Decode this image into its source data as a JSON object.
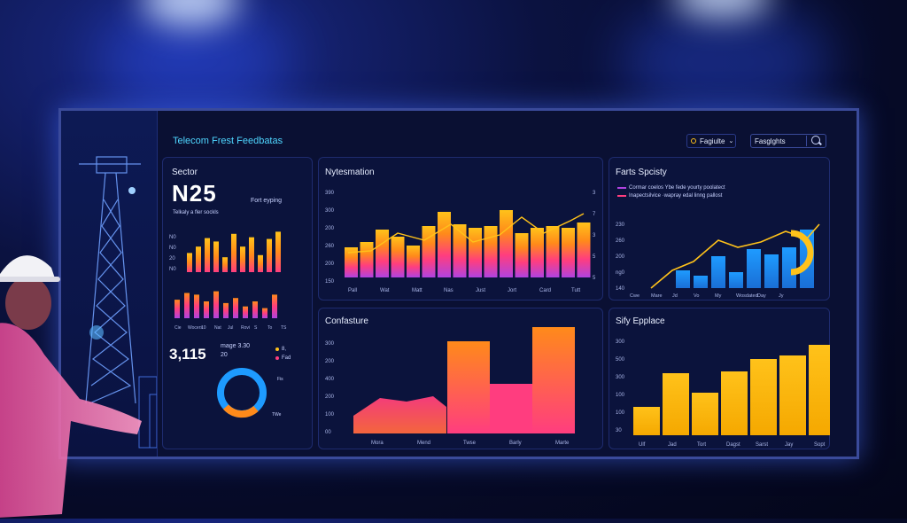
{
  "dashboard": {
    "title": "Telecom Frest Feedbatas",
    "filter_label": "Fagiulte",
    "search_placeholder": "Fasglghts"
  },
  "sector": {
    "title": "Sector",
    "kpi": "N25",
    "side_label": "Fort eyping",
    "sub_label": "Telkaly a fler sockls",
    "ylabels": [
      "N0",
      "N0",
      "20",
      "N0"
    ],
    "bars1": [
      0.45,
      0.6,
      0.8,
      0.72,
      0.35,
      0.9,
      0.6,
      0.82,
      0.4,
      0.78,
      0.95
    ],
    "bars2": [
      0.55,
      0.75,
      0.7,
      0.5,
      0.8,
      0.45,
      0.6,
      0.35,
      0.5,
      0.3,
      0.7
    ],
    "xlabels": [
      "Cie",
      "Wocers",
      "10",
      "Nat",
      "Jul",
      "Rovi",
      "S",
      "To",
      "TS"
    ],
    "kpi2": "3,115",
    "kpi2_sub1": "mage 3.30",
    "kpi2_sub2": "20",
    "legend": [
      {
        "label": "8,"
      },
      {
        "label": "Fad"
      }
    ],
    "donut_label1": "Fis",
    "donut_label2": "TWe"
  },
  "panel_top_mid": {
    "title": "Nytesmation",
    "ylabels": [
      "390",
      "300",
      "200",
      "260",
      "200",
      "150"
    ],
    "yright": [
      "3",
      "7",
      "3",
      "5",
      "5"
    ],
    "xlabels": [
      "Pall",
      "Wat",
      "Matt",
      "Nas",
      "Just",
      "Jort",
      "Card",
      "Tutt"
    ]
  },
  "panel_top_right": {
    "title": "Farts Spcisty",
    "legend1": "Cormar coelos   Ybe fede yourty poolatect",
    "legend2": "Inapectsilvice  ·wapray edal linng pallost",
    "ylabels": [
      "230",
      "260",
      "200",
      "ng0",
      "140"
    ],
    "xlabels": [
      "Cwe",
      "Mare",
      "Jd",
      "Vo",
      "My",
      "Wosdated",
      "Day",
      "Jy"
    ]
  },
  "panel_bot_mid": {
    "title": "Confasture",
    "ylabels": [
      "300",
      "200",
      "400",
      "200",
      "100",
      "00"
    ],
    "xlabels": [
      "Mora",
      "Mend",
      "Twse",
      "Barly",
      "Marte"
    ]
  },
  "panel_bot_right": {
    "title": "Sify Epplace",
    "ylabels": [
      "300",
      "500",
      "300",
      "100",
      "100",
      "30"
    ],
    "xlabels": [
      "Ulf",
      "Jad",
      "Tort",
      "Dagst",
      "Sarst",
      "Jay",
      "Sopt"
    ]
  },
  "colors": {
    "cyan": "#4fd6ff",
    "yellow": "#ffc21a",
    "orange": "#ff8a1a",
    "pink": "#ff3d7f",
    "purple": "#b043e0",
    "blue": "#1e9bff"
  }
}
